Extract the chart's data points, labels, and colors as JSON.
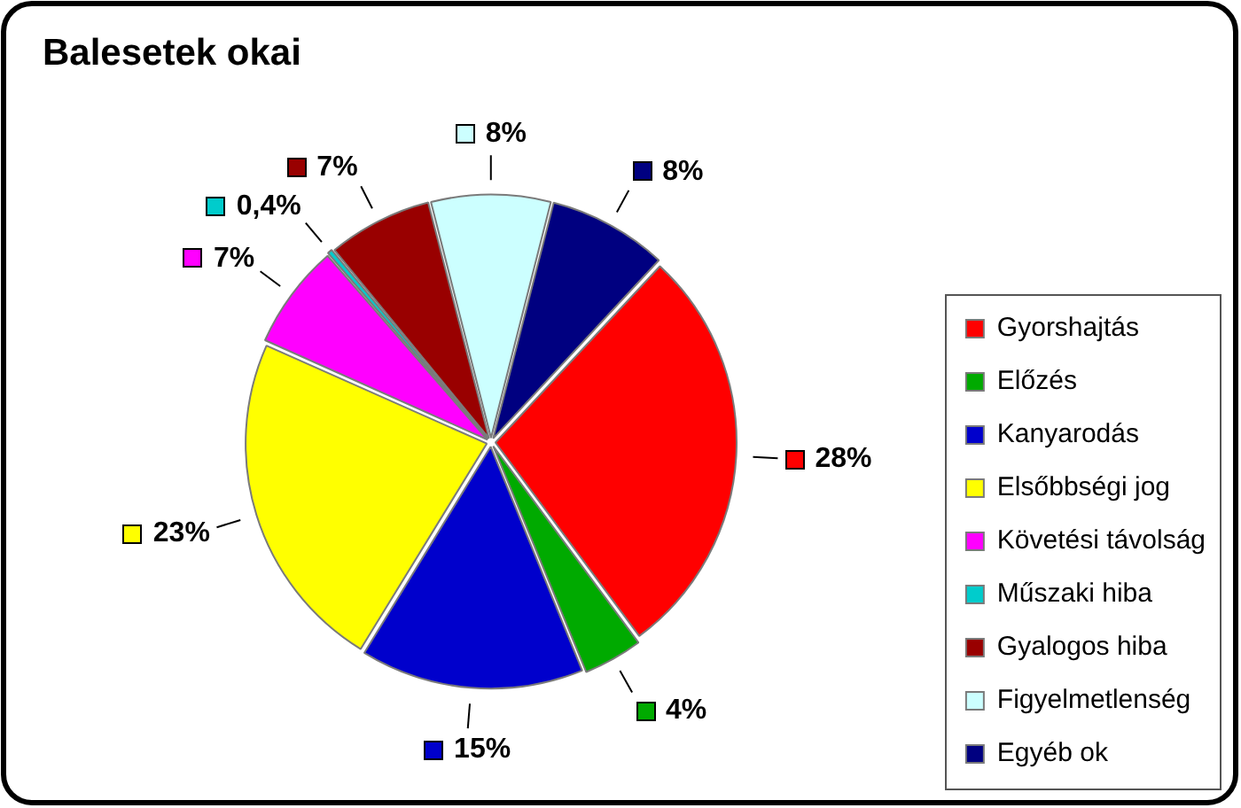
{
  "chart_data": {
    "type": "pie",
    "title": "Balesetek okai",
    "categories": [
      "Gyorshajtás",
      "Előzés",
      "Kanyarodás",
      "Elsőbbségi jog",
      "Követési távolság",
      "Műszaki hiba",
      "Gyalogos hiba",
      "Figyelmetlenség",
      "Egyéb ok"
    ],
    "values": [
      28,
      4,
      15,
      23,
      7,
      0.4,
      7,
      8,
      8
    ],
    "colors": [
      "#ff0000",
      "#00aa00",
      "#0000cc",
      "#ffff00",
      "#ff00ff",
      "#00cccc",
      "#990000",
      "#ccffff",
      "#000080"
    ],
    "value_labels": [
      "28%",
      "4%",
      "15%",
      "23%",
      "7%",
      "0,4%",
      "7%",
      "8%",
      "8%"
    ],
    "legend": "bottom right"
  }
}
